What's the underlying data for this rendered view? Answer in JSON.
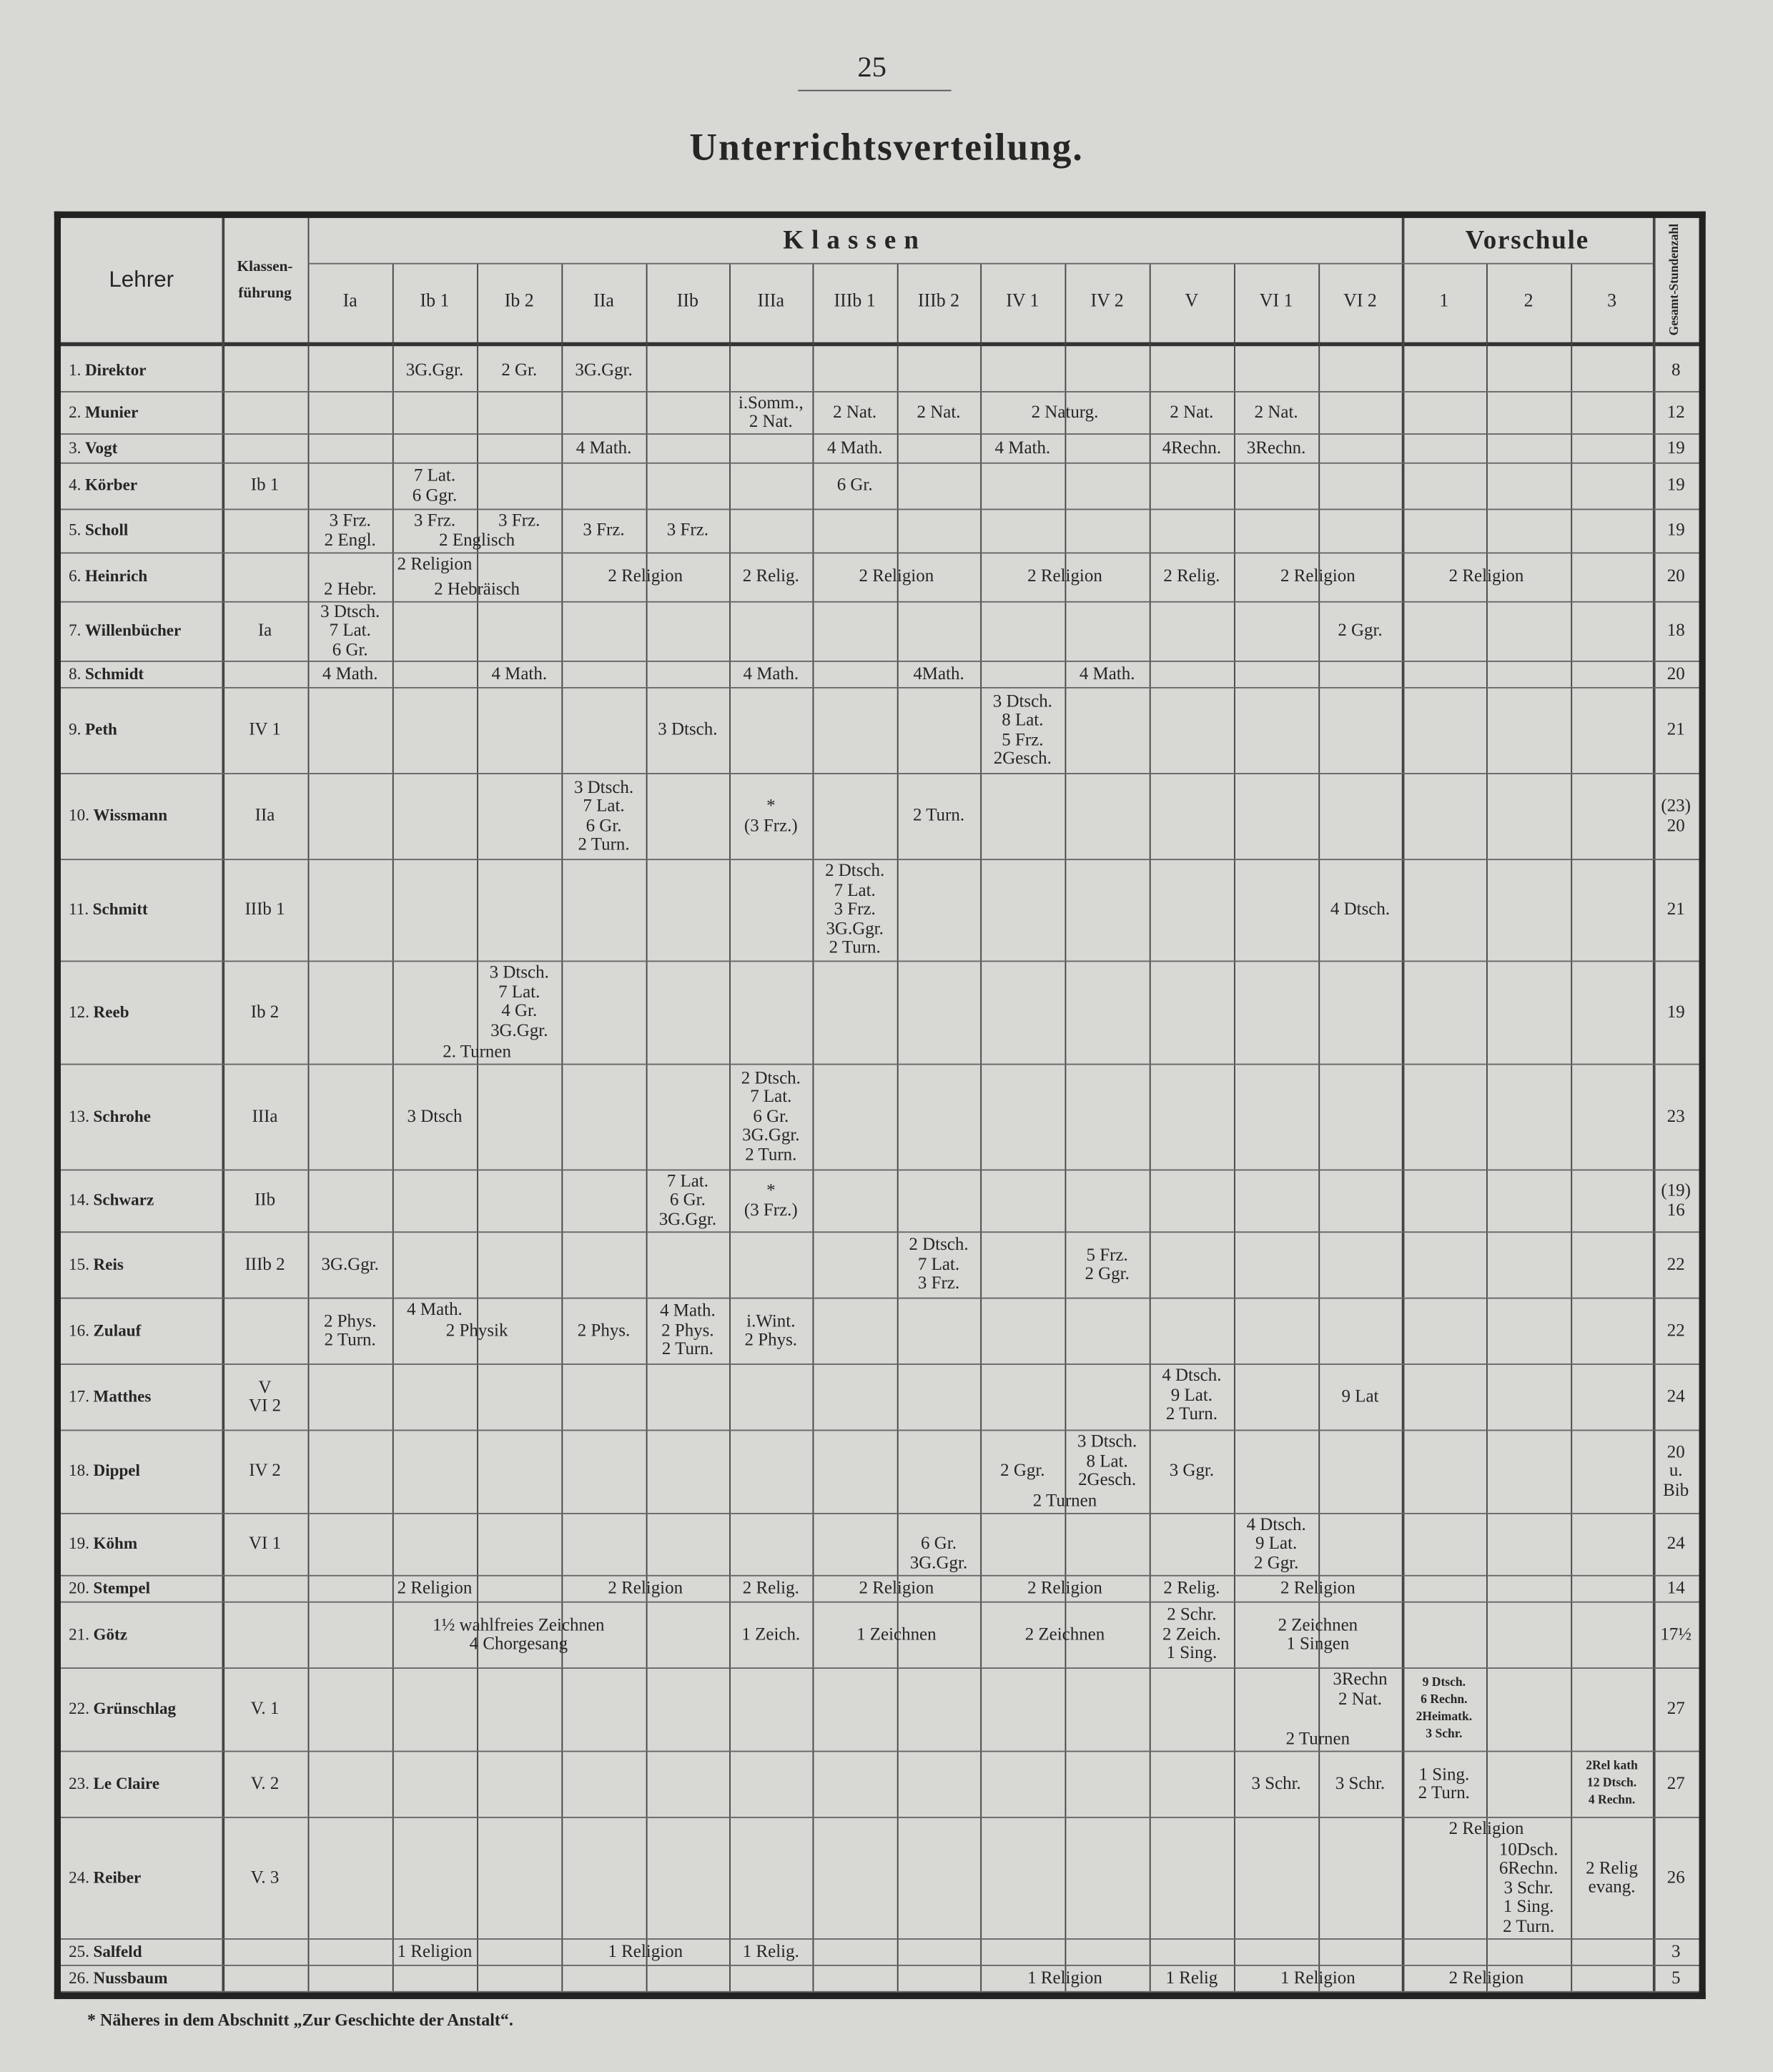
{
  "page_number": "25",
  "title": "Unterrichtsverteilung.",
  "header": {
    "lehrer": "Lehrer",
    "klassenfuehrung": [
      "Klassen-",
      "führung"
    ],
    "klassen_group": "Klassen",
    "vorschule_group": "Vorschule",
    "gesamt": [
      "Gesamt-",
      "Stundenzahl"
    ],
    "klassen": [
      "Ia",
      "Ib 1",
      "Ib 2",
      "IIa",
      "IIb",
      "IIIa",
      "IIIb 1",
      "IIIb 2",
      "IV 1",
      "IV 2",
      "V",
      "VI 1",
      "VI 2"
    ],
    "vorschule": [
      "1",
      "2",
      "3"
    ]
  },
  "rows": [
    {
      "num": "1.",
      "name": "Direktor",
      "kf": [],
      "total": [
        "8"
      ],
      "cells": [
        {
          "col": "Ib 1",
          "lines": [
            "3G.Ggr."
          ]
        },
        {
          "col": "Ib 2",
          "lines": [
            "2 Gr."
          ]
        },
        {
          "col": "IIa",
          "lines": [
            "3G.Ggr."
          ]
        }
      ]
    },
    {
      "num": "2.",
      "name": "Munier",
      "kf": [],
      "total": [
        "12"
      ],
      "cells": [
        {
          "col": "IIIa",
          "lines": [
            "i.Somm.,",
            "2 Nat."
          ]
        },
        {
          "col": "IIIb 1",
          "lines": [
            "2 Nat."
          ]
        },
        {
          "col": "IIIb 2",
          "lines": [
            "2 Nat."
          ]
        },
        {
          "col": "IV 1",
          "span": 2,
          "lines": [
            "2 Naturg."
          ]
        },
        {
          "col": "V",
          "lines": [
            "2 Nat."
          ]
        },
        {
          "col": "VI 1",
          "lines": [
            "2 Nat."
          ]
        }
      ]
    },
    {
      "num": "3.",
      "name": "Vogt",
      "kf": [],
      "total": [
        "19"
      ],
      "cells": [
        {
          "col": "IIa",
          "lines": [
            "4 Math."
          ]
        },
        {
          "col": "IIIb 1",
          "lines": [
            "4 Math."
          ]
        },
        {
          "col": "IV 1",
          "lines": [
            "4 Math."
          ]
        },
        {
          "col": "V",
          "lines": [
            "4Rechn."
          ]
        },
        {
          "col": "VI 1",
          "lines": [
            "3Rechn."
          ]
        }
      ]
    },
    {
      "num": "4.",
      "name": "Körber",
      "kf": [
        "Ib 1"
      ],
      "total": [
        "19"
      ],
      "cells": [
        {
          "col": "Ib 1",
          "lines": [
            "7 Lat.",
            "6 Ggr."
          ]
        },
        {
          "col": "IIIb 1",
          "lines": [
            "6 Gr."
          ]
        }
      ]
    },
    {
      "num": "5.",
      "name": "Scholl",
      "kf": [],
      "total": [
        "19"
      ],
      "cells": [
        {
          "col": "Ia",
          "lines": [
            "3 Frz.",
            "2 Engl."
          ]
        },
        {
          "col": "Ib 1",
          "lines": [
            "3 Frz."
          ],
          "v": "top"
        },
        {
          "col": "Ib 2",
          "lines": [
            "3 Frz."
          ],
          "v": "top"
        },
        {
          "col": "Ib 1",
          "span": 2,
          "lines": [
            "2 Englisch"
          ],
          "v": "bottom"
        },
        {
          "col": "IIa",
          "lines": [
            "3 Frz."
          ]
        },
        {
          "col": "IIb",
          "lines": [
            "3 Frz."
          ]
        }
      ]
    },
    {
      "num": "6.",
      "name": "Heinrich",
      "kf": [],
      "total": [
        "20"
      ],
      "cells": [
        {
          "col": "Ia",
          "span": 3,
          "lines": [
            "2 Religion"
          ],
          "v": "top"
        },
        {
          "col": "Ia",
          "lines": [
            "2 Hebr."
          ],
          "v": "bottom"
        },
        {
          "col": "Ib 1",
          "span": 2,
          "lines": [
            "2 Hebräisch"
          ],
          "v": "bottom"
        },
        {
          "col": "IIa",
          "span": 2,
          "lines": [
            "2 Religion"
          ]
        },
        {
          "col": "IIIa",
          "lines": [
            "2 Relig."
          ]
        },
        {
          "col": "IIIb 1",
          "span": 2,
          "lines": [
            "2 Religion"
          ]
        },
        {
          "col": "IV 1",
          "span": 2,
          "lines": [
            "2 Religion"
          ]
        },
        {
          "col": "V",
          "lines": [
            "2 Relig."
          ]
        },
        {
          "col": "VI 1",
          "span": 2,
          "lines": [
            "2 Religion"
          ]
        },
        {
          "col": "1",
          "span": 2,
          "lines": [
            "2 Religion"
          ]
        }
      ]
    },
    {
      "num": "7.",
      "name": "Willenbücher",
      "kf": [
        "Ia"
      ],
      "total": [
        "18"
      ],
      "cells": [
        {
          "col": "Ia",
          "lines": [
            "3 Dtsch.",
            "7 Lat.",
            "6 Gr."
          ]
        },
        {
          "col": "VI 2",
          "lines": [
            "2 Ggr."
          ]
        }
      ]
    },
    {
      "num": "8.",
      "name": "Schmidt",
      "kf": [],
      "total": [
        "20"
      ],
      "cells": [
        {
          "col": "Ia",
          "lines": [
            "4 Math."
          ]
        },
        {
          "col": "Ib 2",
          "lines": [
            "4 Math."
          ]
        },
        {
          "col": "IIIa",
          "lines": [
            "4 Math."
          ]
        },
        {
          "col": "IIIb 2",
          "lines": [
            "4Math."
          ]
        },
        {
          "col": "IV 2",
          "lines": [
            "4 Math."
          ]
        }
      ]
    },
    {
      "num": "9.",
      "name": "Peth",
      "kf": [
        "IV 1"
      ],
      "total": [
        "21"
      ],
      "cells": [
        {
          "col": "IIb",
          "lines": [
            "3 Dtsch."
          ]
        },
        {
          "col": "IV 1",
          "lines": [
            "3 Dtsch.",
            "8 Lat.",
            "5 Frz.",
            "2Gesch."
          ]
        }
      ]
    },
    {
      "num": "10.",
      "name": "Wissmann",
      "kf": [
        "IIa"
      ],
      "total": [
        "(23)",
        "20"
      ],
      "cells": [
        {
          "col": "IIa",
          "lines": [
            "3 Dtsch.",
            "7 Lat.",
            "6 Gr.",
            "2 Turn."
          ]
        },
        {
          "col": "IIIa",
          "lines": [
            "*",
            "(3 Frz.)"
          ]
        },
        {
          "col": "IIIb 2",
          "lines": [
            "2 Turn."
          ]
        }
      ]
    },
    {
      "num": "11.",
      "name": "Schmitt",
      "kf": [
        "IIIb 1"
      ],
      "total": [
        "21"
      ],
      "cells": [
        {
          "col": "IIIb 1",
          "lines": [
            "2 Dtsch.",
            "7 Lat.",
            "3 Frz.",
            "3G.Ggr.",
            "2 Turn."
          ]
        },
        {
          "col": "VI 2",
          "lines": [
            "4 Dtsch."
          ]
        }
      ]
    },
    {
      "num": "12.",
      "name": "Reeb",
      "kf": [
        "Ib 2"
      ],
      "total": [
        "19"
      ],
      "cells": [
        {
          "col": "Ib 2",
          "lines": [
            "3 Dtsch.",
            "7 Lat.",
            "4 Gr.",
            "3G.Ggr."
          ],
          "v": "top"
        },
        {
          "col": "Ib 1",
          "span": 2,
          "lines": [
            "2. Turnen"
          ],
          "v": "bottom"
        }
      ]
    },
    {
      "num": "13.",
      "name": "Schrohe",
      "kf": [
        "IIIa"
      ],
      "total": [
        "23"
      ],
      "cells": [
        {
          "col": "Ib 1",
          "lines": [
            "3 Dtsch"
          ]
        },
        {
          "col": "IIIa",
          "lines": [
            "2 Dtsch.",
            "7 Lat.",
            "6 Gr.",
            "3G.Ggr.",
            "2 Turn."
          ]
        }
      ]
    },
    {
      "num": "14.",
      "name": "Schwarz",
      "kf": [
        "IIb"
      ],
      "total": [
        "(19)",
        "16"
      ],
      "cells": [
        {
          "col": "IIb",
          "lines": [
            "7 Lat.",
            "6 Gr.",
            "3G.Ggr."
          ]
        },
        {
          "col": "IIIa",
          "lines": [
            "*",
            "(3 Frz.)"
          ]
        }
      ]
    },
    {
      "num": "15.",
      "name": "Reis",
      "kf": [
        "IIIb 2"
      ],
      "total": [
        "22"
      ],
      "cells": [
        {
          "col": "Ia",
          "lines": [
            "3G.Ggr."
          ]
        },
        {
          "col": "IIIb 2",
          "lines": [
            "2 Dtsch.",
            "7 Lat.",
            "3 Frz."
          ]
        },
        {
          "col": "IV 2",
          "lines": [
            "5 Frz.",
            "2 Ggr."
          ]
        }
      ]
    },
    {
      "num": "16.",
      "name": "Zulauf",
      "kf": [],
      "total": [
        "22"
      ],
      "cells": [
        {
          "col": "Ia",
          "lines": [
            "2 Phys.",
            "2 Turn."
          ]
        },
        {
          "col": "Ib 1",
          "lines": [
            "4 Math."
          ],
          "v": "top"
        },
        {
          "col": "Ib 1",
          "span": 2,
          "lines": [
            "2 Physik"
          ]
        },
        {
          "col": "IIa",
          "lines": [
            "2 Phys."
          ]
        },
        {
          "col": "IIb",
          "lines": [
            "4 Math.",
            "2 Phys.",
            "2 Turn."
          ]
        },
        {
          "col": "IIIa",
          "lines": [
            "i.Wint.",
            "2 Phys."
          ]
        }
      ]
    },
    {
      "num": "17.",
      "name": "Matthes",
      "kf": [
        "V",
        "VI 2"
      ],
      "total": [
        "24"
      ],
      "cells": [
        {
          "col": "V",
          "lines": [
            "4 Dtsch.",
            "9 Lat.",
            "2 Turn."
          ],
          "v": "top"
        },
        {
          "col": "VI 2",
          "lines": [
            "9 Lat"
          ]
        }
      ]
    },
    {
      "num": "18.",
      "name": "Dippel",
      "kf": [
        "IV 2"
      ],
      "total": [
        "20",
        "u.",
        "Bib"
      ],
      "cells": [
        {
          "col": "IV 1",
          "lines": [
            "2 Ggr."
          ]
        },
        {
          "col": "IV 2",
          "lines": [
            "3 Dtsch.",
            "8 Lat.",
            "2Gesch."
          ],
          "v": "top"
        },
        {
          "col": "IV 1",
          "span": 2,
          "lines": [
            "2 Turnen"
          ],
          "v": "bottom"
        },
        {
          "col": "V",
          "lines": [
            "3 Ggr."
          ]
        }
      ]
    },
    {
      "num": "19.",
      "name": "Köhm",
      "kf": [
        "VI 1"
      ],
      "total": [
        "24"
      ],
      "cells": [
        {
          "col": "IIIb 2",
          "lines": [
            "6 Gr.",
            "3G.Ggr."
          ],
          "v": "bottom"
        },
        {
          "col": "VI 1",
          "lines": [
            "4 Dtsch.",
            "9 Lat.",
            "2 Ggr."
          ]
        }
      ]
    },
    {
      "num": "20.",
      "name": "Stempel",
      "kf": [],
      "total": [
        "14"
      ],
      "cells": [
        {
          "col": "Ia",
          "span": 3,
          "lines": [
            "2 Religion"
          ]
        },
        {
          "col": "IIa",
          "span": 2,
          "lines": [
            "2 Religion"
          ]
        },
        {
          "col": "IIIa",
          "lines": [
            "2 Relig."
          ]
        },
        {
          "col": "IIIb 1",
          "span": 2,
          "lines": [
            "2 Religion"
          ]
        },
        {
          "col": "IV 1",
          "span": 2,
          "lines": [
            "2 Religion"
          ]
        },
        {
          "col": "V",
          "lines": [
            "2 Relig."
          ]
        },
        {
          "col": "VI 1",
          "span": 2,
          "lines": [
            "2 Religion"
          ]
        }
      ]
    },
    {
      "num": "21.",
      "name": "Götz",
      "kf": [],
      "total": [
        "17½"
      ],
      "cells": [
        {
          "col": "Ia",
          "span": 5,
          "lines": [
            "1½ wahlfreies Zeichnen",
            "4 Chorgesang"
          ]
        },
        {
          "col": "IIIa",
          "lines": [
            "1 Zeich."
          ]
        },
        {
          "col": "IIIb 1",
          "span": 2,
          "lines": [
            "1 Zeichnen"
          ]
        },
        {
          "col": "IV 1",
          "span": 2,
          "lines": [
            "2 Zeichnen"
          ]
        },
        {
          "col": "V",
          "lines": [
            "2 Schr.",
            "2 Zeich.",
            "1 Sing."
          ]
        },
        {
          "col": "VI 1",
          "span": 2,
          "lines": [
            "2 Zeichnen",
            "1 Singen"
          ]
        }
      ]
    },
    {
      "num": "22.",
      "name": "Grünschlag",
      "kf": [
        "V. 1"
      ],
      "total": [
        "27"
      ],
      "cells": [
        {
          "col": "VI 2",
          "lines": [
            "3Rechn",
            "2 Nat."
          ],
          "v": "top"
        },
        {
          "col": "VI 1",
          "span": 2,
          "lines": [
            "2 Turnen"
          ],
          "v": "bottom"
        },
        {
          "col": "1",
          "lines": [
            "9 Dtsch.",
            "6 Rechn.",
            "2Heimatk.",
            "3 Schr."
          ],
          "small": true
        }
      ]
    },
    {
      "num": "23.",
      "name": "Le Claire",
      "kf": [
        "V. 2"
      ],
      "total": [
        "27"
      ],
      "cells": [
        {
          "col": "VI 1",
          "lines": [
            "3 Schr."
          ]
        },
        {
          "col": "VI 2",
          "lines": [
            "3 Schr."
          ]
        },
        {
          "col": "1",
          "lines": [
            "1 Sing.",
            "2 Turn."
          ]
        },
        {
          "col": "3",
          "lines": [
            "2Rel kath",
            "12 Dtsch.",
            "4 Rechn."
          ],
          "small": true
        }
      ]
    },
    {
      "num": "24.",
      "name": "Reiber",
      "kf": [
        "V. 3"
      ],
      "total": [
        "26"
      ],
      "cells": [
        {
          "col": "1",
          "span": 2,
          "lines": [
            "2 Religion"
          ],
          "v": "top"
        },
        {
          "col": "2",
          "lines": [
            "10Dsch.",
            "6Rechn.",
            "3 Schr.",
            "1 Sing.",
            "2 Turn."
          ],
          "v": "bottom"
        },
        {
          "col": "3",
          "lines": [
            "2 Relig",
            "evang."
          ]
        }
      ]
    },
    {
      "num": "25.",
      "name": "Salfeld",
      "kf": [],
      "total": [
        "3"
      ],
      "cells": [
        {
          "col": "Ia",
          "span": 3,
          "lines": [
            "1 Religion"
          ]
        },
        {
          "col": "IIa",
          "span": 2,
          "lines": [
            "1 Religion"
          ]
        },
        {
          "col": "IIIa",
          "lines": [
            "1 Relig."
          ]
        }
      ]
    },
    {
      "num": "26.",
      "name": "Nussbaum",
      "kf": [],
      "total": [
        "5"
      ],
      "cells": [
        {
          "col": "IV 1",
          "span": 2,
          "lines": [
            "1 Religion"
          ]
        },
        {
          "col": "V",
          "lines": [
            "1 Relig"
          ]
        },
        {
          "col": "VI 1",
          "span": 2,
          "lines": [
            "1 Religion"
          ]
        },
        {
          "col": "1",
          "span": 2,
          "lines": [
            "2 Religion"
          ]
        }
      ]
    }
  ],
  "footnote": "* Näheres in dem Abschnitt „Zur Geschichte der Anstalt“."
}
